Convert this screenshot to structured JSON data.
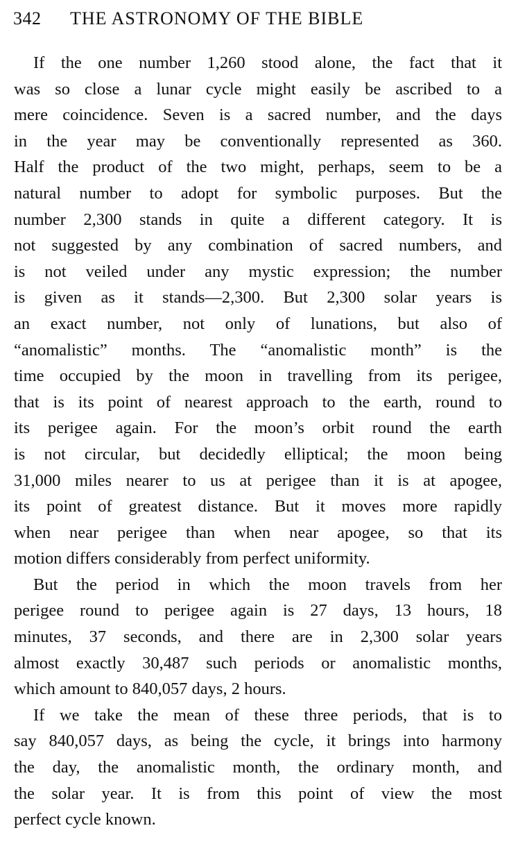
{
  "header": {
    "page_number": "342",
    "running_title": "THE ASTRONOMY OF THE BIBLE"
  },
  "paragraphs": [
    {
      "lines": [
        "If the one number 1,260 stood alone, the fact that it",
        "was so close a lunar cycle might easily be ascribed to a",
        "mere coincidence.  Seven is a sacred number, and the days",
        "in the year may be conventionally represented as 360.",
        "Half the product of the two might, perhaps, seem to be a",
        "natural number to adopt for symbolic purposes.  But the",
        "number 2,300 stands in quite a different category.  It is",
        "not suggested by any combination of sacred numbers, and",
        "is not veiled under any mystic expression; the number",
        "is given as it stands—2,300.  But 2,300 solar years is",
        "an exact number, not only of lunations, but also of",
        "“anomalistic” months.  The “anomalistic month” is the",
        "time occupied by the moon in travelling from its perigee,",
        "that is its point of nearest approach to the earth, round to",
        "its perigee again.  For the moon’s orbit round the earth",
        "is not circular, but decidedly elliptical; the moon being",
        "31,000 miles nearer to us at perigee than it is at apogee,",
        "its point of greatest distance.  But it moves more rapidly",
        "when near perigee than when near apogee, so that its",
        "motion differs considerably from perfect uniformity."
      ]
    },
    {
      "lines": [
        "But the period in which the moon travels from her",
        "perigee round to perigee again is 27 days, 13 hours, 18",
        "minutes, 37 seconds, and there are in 2,300 solar years",
        "almost exactly 30,487 such periods or anomalistic months,",
        "which amount to 840,057 days, 2 hours."
      ]
    },
    {
      "lines": [
        "If we take the mean of these three periods, that is to",
        "say 840,057 days, as being the cycle, it brings into harmony",
        "the day, the anomalistic month, the ordinary month, and",
        "the solar year.  It is from this point of view the most",
        "perfect cycle known."
      ]
    }
  ]
}
